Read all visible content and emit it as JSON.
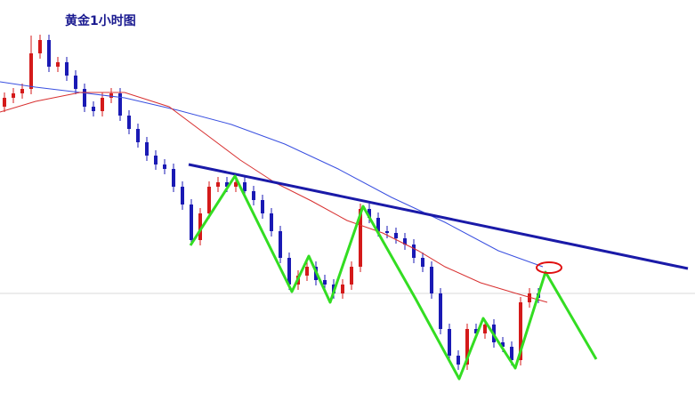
{
  "chart_data": {
    "type": "candlestick",
    "title": "黄金1小时图",
    "ylim": [
      0,
      442
    ],
    "up_color": "#d41a1a",
    "down_color": "#1a1ab4",
    "open": [
      322,
      332,
      337,
      342,
      382,
      397,
      367,
      372,
      357,
      342,
      322,
      317,
      332,
      337,
      312,
      297,
      282,
      267,
      257,
      252,
      232,
      212,
      172,
      202,
      232,
      237,
      232,
      237,
      227,
      217,
      202,
      182,
      152,
      122,
      132,
      142,
      127,
      122,
      112,
      122,
      142,
      207,
      197,
      182,
      180,
      174,
      167,
      152,
      142,
      112,
      72,
      42,
      32,
      72,
      67,
      77,
      57,
      52,
      37,
      102,
      112
    ],
    "high": [
      338,
      343,
      348,
      402,
      403,
      403,
      378,
      378,
      363,
      348,
      328,
      338,
      343,
      343,
      318,
      303,
      288,
      273,
      263,
      258,
      238,
      218,
      208,
      238,
      243,
      243,
      243,
      243,
      233,
      223,
      208,
      188,
      158,
      138,
      148,
      148,
      133,
      128,
      128,
      148,
      213,
      213,
      203,
      188,
      186,
      180,
      173,
      158,
      148,
      118,
      78,
      48,
      78,
      78,
      83,
      83,
      63,
      58,
      108,
      118,
      118
    ],
    "low": [
      316,
      326,
      331,
      336,
      376,
      361,
      361,
      351,
      336,
      316,
      311,
      311,
      326,
      306,
      291,
      276,
      261,
      251,
      246,
      226,
      206,
      166,
      166,
      196,
      226,
      226,
      226,
      221,
      211,
      196,
      176,
      146,
      116,
      116,
      126,
      121,
      116,
      106,
      106,
      116,
      136,
      191,
      176,
      174,
      168,
      161,
      146,
      136,
      106,
      66,
      36,
      26,
      26,
      61,
      61,
      51,
      46,
      31,
      31,
      96,
      101
    ],
    "close": [
      332,
      337,
      342,
      382,
      397,
      367,
      372,
      357,
      342,
      322,
      317,
      332,
      337,
      312,
      297,
      282,
      267,
      257,
      252,
      232,
      212,
      172,
      202,
      232,
      237,
      232,
      237,
      227,
      217,
      202,
      182,
      152,
      122,
      132,
      142,
      127,
      122,
      112,
      122,
      142,
      207,
      197,
      182,
      180,
      174,
      167,
      152,
      142,
      112,
      72,
      42,
      32,
      72,
      67,
      77,
      57,
      52,
      37,
      102,
      112,
      107
    ]
  }
}
